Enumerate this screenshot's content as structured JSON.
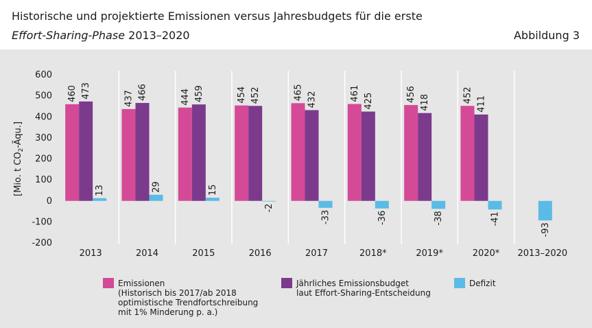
{
  "header": {
    "title": "Historische und projektierte Emissionen versus Jahresbudgets für die erste",
    "subtitle_italic": "Effort-Sharing-Phase",
    "subtitle_rest": " 2013–2020",
    "figure_label": "Abbildung 3"
  },
  "colors": {
    "background": "#e6e6e6",
    "emissions": "#d44a97",
    "budget": "#7b3a8c",
    "deficit": "#5bbbe6"
  },
  "chart_data": {
    "type": "bar",
    "categories": [
      "2013",
      "2014",
      "2015",
      "2016",
      "2017",
      "2018*",
      "2019*",
      "2020*",
      "2013–2020"
    ],
    "series": [
      {
        "name": "Emissionen",
        "name_lines": [
          "Emissionen",
          "(Historisch bis 2017/ab 2018",
          "optimistische Trendfortschreibung",
          "mit 1% Minderung p. a.)"
        ],
        "color": "#d44a97",
        "values": [
          460,
          437,
          444,
          454,
          465,
          461,
          456,
          452,
          null
        ]
      },
      {
        "name": "Jährliches Emissionsbudget laut Effort-Sharing-Entscheidung",
        "name_lines": [
          "Jährliches Emissionsbudget",
          "laut Effort-Sharing-Entscheidung"
        ],
        "color": "#7b3a8c",
        "values": [
          473,
          466,
          459,
          452,
          432,
          425,
          418,
          411,
          null
        ]
      },
      {
        "name": "Defizit",
        "name_lines": [
          "Defizit"
        ],
        "color": "#5bbbe6",
        "values": [
          13,
          29,
          15,
          -2,
          -33,
          -36,
          -38,
          -41,
          -93
        ]
      }
    ],
    "ylabel_parts": [
      "[Mio. t CO",
      "2",
      "-Äqu.]"
    ],
    "ylim": [
      -200,
      600
    ],
    "yticks": [
      600,
      500,
      400,
      300,
      200,
      100,
      0,
      -100,
      -200
    ],
    "grid": false,
    "legend_position": "bottom"
  }
}
